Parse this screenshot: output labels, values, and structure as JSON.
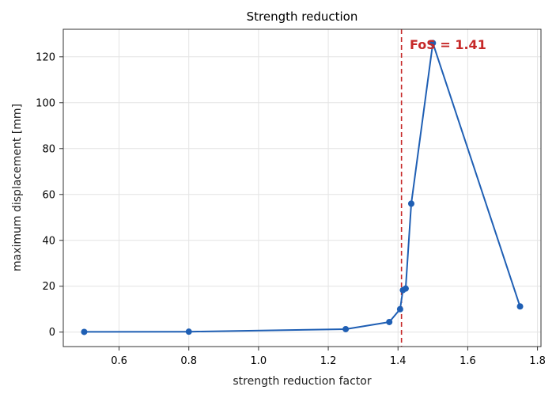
{
  "chart_data": {
    "type": "line",
    "title": "Strength reduction",
    "xlabel": "strength reduction factor",
    "ylabel": "maximum displacement [mm]",
    "xlim": [
      0.44,
      1.81
    ],
    "ylim": [
      -6.3,
      132
    ],
    "xticks": [
      0.6,
      0.8,
      1.0,
      1.2,
      1.4,
      1.6,
      1.8
    ],
    "xtick_labels": [
      "0.6",
      "0.8",
      "1.0",
      "1.2",
      "1.4",
      "1.6",
      "1.8"
    ],
    "yticks": [
      0,
      20,
      40,
      60,
      80,
      100,
      120
    ],
    "ytick_labels": [
      "0",
      "20",
      "40",
      "60",
      "80",
      "100",
      "120"
    ],
    "grid": true,
    "series": [
      {
        "color": "#1f5fb4",
        "x": [
          0.5,
          0.8,
          1.25,
          1.375,
          1.406,
          1.414,
          1.422,
          1.438,
          1.5,
          1.75
        ],
        "y": [
          0.1,
          0.2,
          1.3,
          4.4,
          10.0,
          18.3,
          19.0,
          56.0,
          126.0,
          11.2
        ]
      }
    ],
    "reference_line": {
      "x": 1.41,
      "color": "#c62828",
      "style": "dashed"
    },
    "annotation": {
      "text": "FoS = 1.41",
      "color": "#c62828"
    }
  }
}
